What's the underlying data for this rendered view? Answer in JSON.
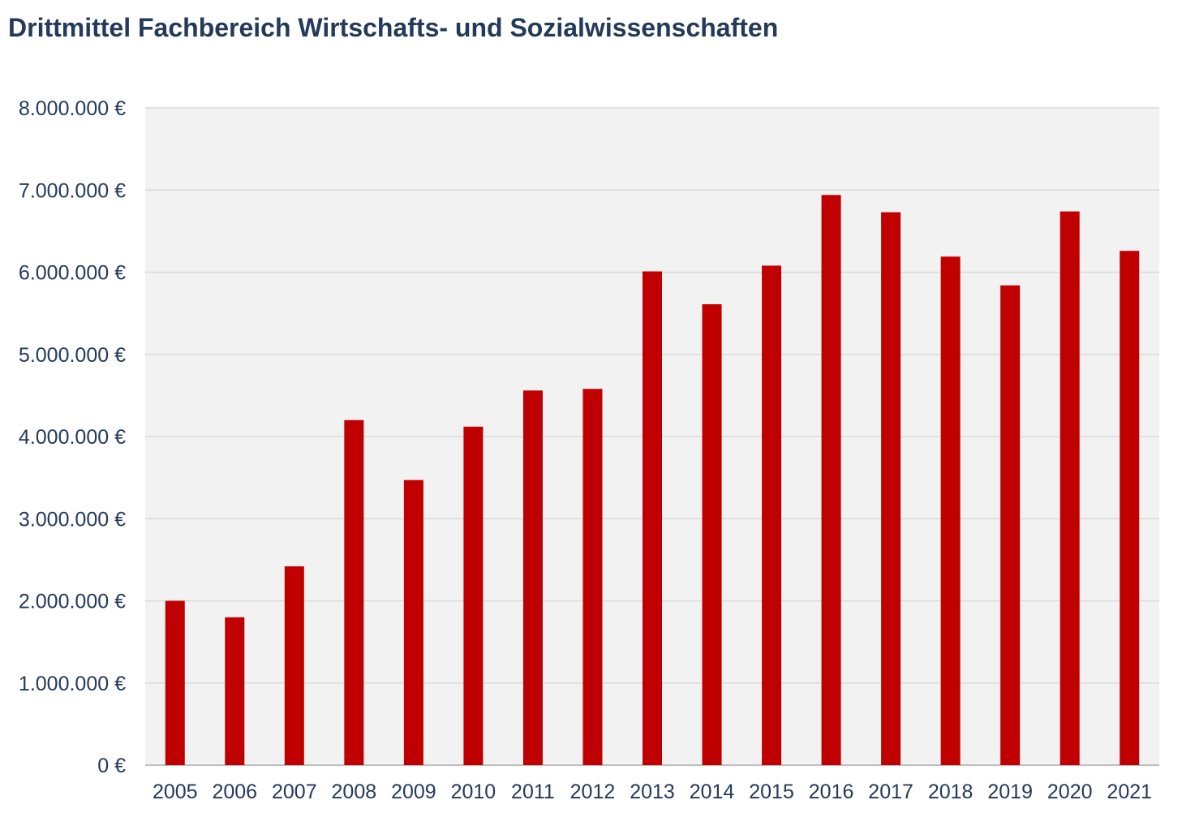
{
  "colors": {
    "bar": "#c00000",
    "plot_background": "#f2f2f2",
    "gridline": "#d9d9d9",
    "text": "#243a5a"
  },
  "chart_data": {
    "type": "bar",
    "title": "Drittmittel Fachbereich Wirtschafts- und Sozialwissenschaften",
    "xlabel": "",
    "ylabel": "",
    "categories": [
      "2005",
      "2006",
      "2007",
      "2008",
      "2009",
      "2010",
      "2011",
      "2012",
      "2013",
      "2014",
      "2015",
      "2016",
      "2017",
      "2018",
      "2019",
      "2020",
      "2021"
    ],
    "values": [
      2000000,
      1800000,
      2420000,
      4200000,
      3470000,
      4120000,
      4560000,
      4580000,
      6010000,
      5610000,
      6080000,
      6940000,
      6730000,
      6190000,
      5840000,
      6740000,
      6260000
    ],
    "ylim": [
      0,
      8000000
    ],
    "yticks": [
      0,
      1000000,
      2000000,
      3000000,
      4000000,
      5000000,
      6000000,
      7000000,
      8000000
    ],
    "ytick_labels": [
      "0 €",
      "1.000.000 €",
      "2.000.000 €",
      "3.000.000 €",
      "4.000.000 €",
      "5.000.000 €",
      "6.000.000 €",
      "7.000.000 €",
      "8.000.000 €"
    ],
    "grid": true,
    "legend": "none"
  }
}
